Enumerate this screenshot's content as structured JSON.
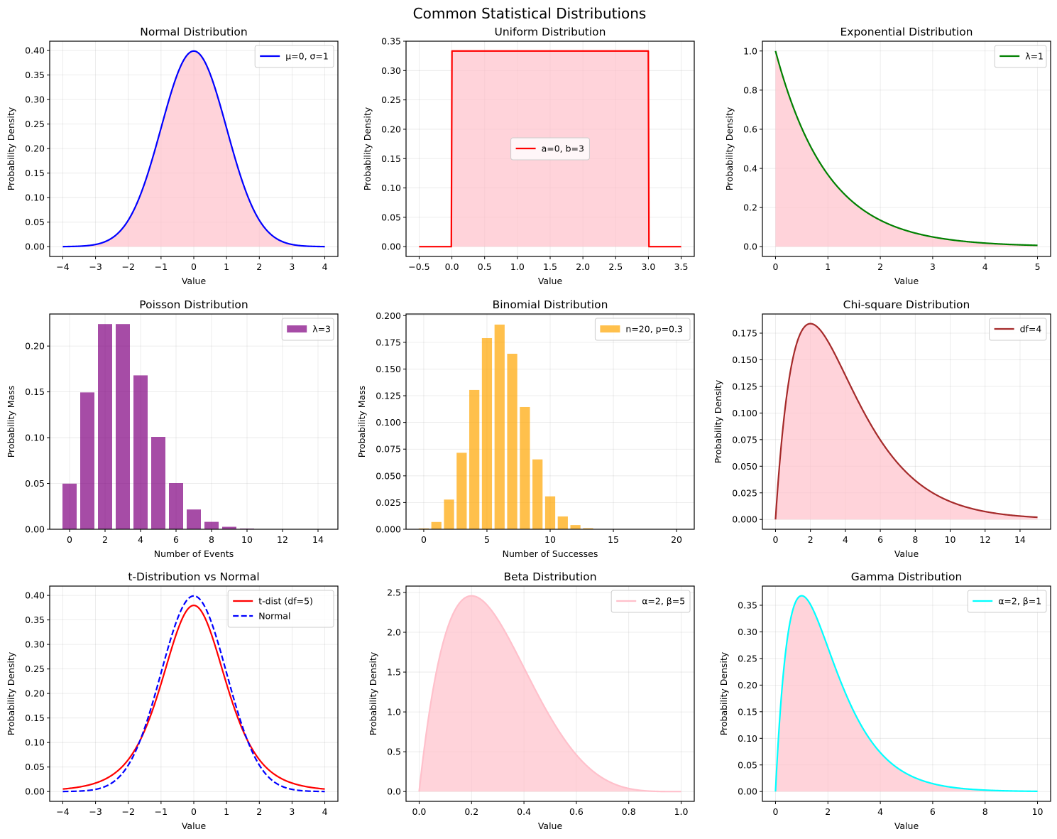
{
  "figure": {
    "suptitle": "Common Statistical Distributions",
    "fill_color": "#ffc0cb",
    "fill_opacity": 0.7
  },
  "chart_data": [
    {
      "id": "normal",
      "type": "line",
      "title": "Normal Distribution",
      "xlabel": "Value",
      "ylabel": "Probability Density",
      "xlim": [
        -4.4,
        4.4
      ],
      "ylim": [
        -0.02,
        0.419
      ],
      "xticks": [
        -4,
        -3,
        -2,
        -1,
        0,
        1,
        2,
        3,
        4
      ],
      "xtick_labels": [
        "−4",
        "−3",
        "−2",
        "−1",
        "0",
        "1",
        "2",
        "3",
        "4"
      ],
      "yticks": [
        0,
        0.05,
        0.1,
        0.15,
        0.2,
        0.25,
        0.3,
        0.35,
        0.4
      ],
      "ytick_labels": [
        "0.00",
        "0.05",
        "0.10",
        "0.15",
        "0.20",
        "0.25",
        "0.30",
        "0.35",
        "0.40"
      ],
      "grid": true,
      "legend": "upper-right",
      "fill_under": true,
      "series": [
        {
          "name": "μ=0, σ=1",
          "color": "#0000ff",
          "dash": false,
          "dist": "normal",
          "params": {
            "mu": 0,
            "sigma": 1
          },
          "x_range": [
            -4,
            4
          ]
        }
      ]
    },
    {
      "id": "uniform",
      "type": "line",
      "title": "Uniform Distribution",
      "xlabel": "Value",
      "ylabel": "Probability Density",
      "xlim": [
        -0.7,
        3.7
      ],
      "ylim": [
        -0.0167,
        0.35
      ],
      "xticks": [
        -0.5,
        0,
        0.5,
        1.0,
        1.5,
        2.0,
        2.5,
        3.0,
        3.5
      ],
      "xtick_labels": [
        "−0.5",
        "0.0",
        "0.5",
        "1.0",
        "1.5",
        "2.0",
        "2.5",
        "3.0",
        "3.5"
      ],
      "yticks": [
        0,
        0.05,
        0.1,
        0.15,
        0.2,
        0.25,
        0.3,
        0.35
      ],
      "ytick_labels": [
        "0.00",
        "0.05",
        "0.10",
        "0.15",
        "0.20",
        "0.25",
        "0.30",
        "0.35"
      ],
      "grid": true,
      "legend": "center",
      "fill_under": true,
      "series": [
        {
          "name": "a=0, b=3",
          "color": "#ff0000",
          "dash": false,
          "dist": "uniform",
          "params": {
            "a": 0,
            "b": 3
          },
          "x_range": [
            -0.5,
            3.5
          ]
        }
      ]
    },
    {
      "id": "exponential",
      "type": "line",
      "title": "Exponential Distribution",
      "xlabel": "Value",
      "ylabel": "Probability Density",
      "xlim": [
        -0.25,
        5.25
      ],
      "ylim": [
        -0.05,
        1.05
      ],
      "xticks": [
        0,
        1,
        2,
        3,
        4,
        5
      ],
      "xtick_labels": [
        "0",
        "1",
        "2",
        "3",
        "4",
        "5"
      ],
      "yticks": [
        0,
        0.2,
        0.4,
        0.6,
        0.8,
        1.0
      ],
      "ytick_labels": [
        "0.0",
        "0.2",
        "0.4",
        "0.6",
        "0.8",
        "1.0"
      ],
      "grid": true,
      "legend": "upper-right",
      "fill_under": true,
      "series": [
        {
          "name": "λ=1",
          "color": "#008000",
          "dash": false,
          "dist": "exponential",
          "params": {
            "lambda": 1
          },
          "x_range": [
            0,
            5
          ]
        }
      ]
    },
    {
      "id": "poisson",
      "type": "bar",
      "title": "Poisson Distribution",
      "xlabel": "Number of Events",
      "ylabel": "Probability Mass",
      "xlim": [
        -1.12,
        15.12
      ],
      "ylim": [
        0,
        0.235
      ],
      "xticks": [
        0,
        2,
        4,
        6,
        8,
        10,
        12,
        14
      ],
      "xtick_labels": [
        "0",
        "2",
        "4",
        "6",
        "8",
        "10",
        "12",
        "14"
      ],
      "yticks": [
        0,
        0.05,
        0.1,
        0.15,
        0.2
      ],
      "ytick_labels": [
        "0.00",
        "0.05",
        "0.10",
        "0.15",
        "0.20"
      ],
      "grid": true,
      "legend": "upper-right",
      "bar_width": 0.8,
      "series": [
        {
          "name": "λ=3",
          "color": "#800080",
          "alpha": 0.7,
          "x": [
            0,
            1,
            2,
            3,
            4,
            5,
            6,
            7,
            8,
            9,
            10,
            11,
            12,
            13,
            14
          ],
          "values": [
            0.0498,
            0.1494,
            0.224,
            0.224,
            0.168,
            0.1008,
            0.0504,
            0.0216,
            0.0081,
            0.0027,
            0.0008,
            0.0002,
            0.0001,
            0.0,
            0.0
          ]
        }
      ]
    },
    {
      "id": "binomial",
      "type": "bar",
      "title": "Binomial Distribution",
      "xlabel": "Number of Successes",
      "ylabel": "Probability Mass",
      "xlim": [
        -1.4,
        21.4
      ],
      "ylim": [
        0,
        0.2015
      ],
      "xticks": [
        0,
        5,
        10,
        15,
        20
      ],
      "xtick_labels": [
        "0",
        "5",
        "10",
        "15",
        "20"
      ],
      "yticks": [
        0,
        0.025,
        0.05,
        0.075,
        0.1,
        0.125,
        0.15,
        0.175,
        0.2
      ],
      "ytick_labels": [
        "0.000",
        "0.025",
        "0.050",
        "0.075",
        "0.100",
        "0.125",
        "0.150",
        "0.175",
        "0.200"
      ],
      "grid": true,
      "legend": "upper-right",
      "bar_width": 0.8,
      "series": [
        {
          "name": "n=20, p=0.3",
          "color": "#ffa500",
          "alpha": 0.7,
          "x": [
            0,
            1,
            2,
            3,
            4,
            5,
            6,
            7,
            8,
            9,
            10,
            11,
            12,
            13,
            14,
            15,
            16,
            17,
            18,
            19,
            20
          ],
          "values": [
            0.0008,
            0.0068,
            0.0278,
            0.0716,
            0.1304,
            0.1789,
            0.1916,
            0.1643,
            0.1144,
            0.0654,
            0.0308,
            0.012,
            0.0039,
            0.001,
            0.0002,
            0.0,
            0.0,
            0.0,
            0.0,
            0.0,
            0.0
          ]
        }
      ]
    },
    {
      "id": "chisquare",
      "type": "line",
      "title": "Chi-square Distribution",
      "xlabel": "Value",
      "ylabel": "Probability Density",
      "xlim": [
        -0.75,
        15.75
      ],
      "ylim": [
        -0.0092,
        0.193
      ],
      "xticks": [
        0,
        2,
        4,
        6,
        8,
        10,
        12,
        14
      ],
      "xtick_labels": [
        "0",
        "2",
        "4",
        "6",
        "8",
        "10",
        "12",
        "14"
      ],
      "yticks": [
        0,
        0.025,
        0.05,
        0.075,
        0.1,
        0.125,
        0.15,
        0.175
      ],
      "ytick_labels": [
        "0.000",
        "0.025",
        "0.050",
        "0.075",
        "0.100",
        "0.125",
        "0.150",
        "0.175"
      ],
      "grid": true,
      "legend": "upper-right",
      "fill_under": true,
      "series": [
        {
          "name": "df=4",
          "color": "#a52a2a",
          "dash": false,
          "dist": "chi2",
          "params": {
            "df": 4
          },
          "x_range": [
            0,
            15
          ]
        }
      ]
    },
    {
      "id": "t-vs-normal",
      "type": "line",
      "title": "t-Distribution vs Normal",
      "xlabel": "Value",
      "ylabel": "Probability Density",
      "xlim": [
        -4.4,
        4.4
      ],
      "ylim": [
        -0.02,
        0.419
      ],
      "xticks": [
        -4,
        -3,
        -2,
        -1,
        0,
        1,
        2,
        3,
        4
      ],
      "xtick_labels": [
        "−4",
        "−3",
        "−2",
        "−1",
        "0",
        "1",
        "2",
        "3",
        "4"
      ],
      "yticks": [
        0,
        0.05,
        0.1,
        0.15,
        0.2,
        0.25,
        0.3,
        0.35,
        0.4
      ],
      "ytick_labels": [
        "0.00",
        "0.05",
        "0.10",
        "0.15",
        "0.20",
        "0.25",
        "0.30",
        "0.35",
        "0.40"
      ],
      "grid": true,
      "legend": "upper-right",
      "fill_under": false,
      "series": [
        {
          "name": "t-dist (df=5)",
          "color": "#ff0000",
          "dash": false,
          "dist": "t",
          "params": {
            "df": 5
          },
          "x_range": [
            -4,
            4
          ]
        },
        {
          "name": "Normal",
          "color": "#0000ff",
          "dash": true,
          "dist": "normal",
          "params": {
            "mu": 0,
            "sigma": 1
          },
          "x_range": [
            -4,
            4
          ]
        }
      ]
    },
    {
      "id": "beta",
      "type": "line",
      "title": "Beta Distribution",
      "xlabel": "Value",
      "ylabel": "Probability Density",
      "xlim": [
        -0.05,
        1.05
      ],
      "ylim": [
        -0.123,
        2.58
      ],
      "xticks": [
        0,
        0.2,
        0.4,
        0.6,
        0.8,
        1.0
      ],
      "xtick_labels": [
        "0.0",
        "0.2",
        "0.4",
        "0.6",
        "0.8",
        "1.0"
      ],
      "yticks": [
        0,
        0.5,
        1.0,
        1.5,
        2.0,
        2.5
      ],
      "ytick_labels": [
        "0.0",
        "0.5",
        "1.0",
        "1.5",
        "2.0",
        "2.5"
      ],
      "grid": true,
      "legend": "upper-right",
      "fill_under": true,
      "series": [
        {
          "name": "α=2, β=5",
          "color": "#ffc0cb",
          "dash": false,
          "dist": "beta",
          "params": {
            "alpha": 2,
            "beta": 5
          },
          "x_range": [
            0,
            1
          ]
        }
      ]
    },
    {
      "id": "gamma",
      "type": "line",
      "title": "Gamma Distribution",
      "xlabel": "Value",
      "ylabel": "Probability Density",
      "xlim": [
        -0.5,
        10.5
      ],
      "ylim": [
        -0.0184,
        0.386
      ],
      "xticks": [
        0,
        2,
        4,
        6,
        8,
        10
      ],
      "xtick_labels": [
        "0",
        "2",
        "4",
        "6",
        "8",
        "10"
      ],
      "yticks": [
        0,
        0.05,
        0.1,
        0.15,
        0.2,
        0.25,
        0.3,
        0.35
      ],
      "ytick_labels": [
        "0.00",
        "0.05",
        "0.10",
        "0.15",
        "0.20",
        "0.25",
        "0.30",
        "0.35"
      ],
      "grid": true,
      "legend": "upper-right",
      "fill_under": true,
      "series": [
        {
          "name": "α=2, β=1",
          "color": "#00ffff",
          "dash": false,
          "dist": "gamma",
          "params": {
            "alpha": 2,
            "beta": 1
          },
          "x_range": [
            0,
            10
          ]
        }
      ]
    }
  ]
}
